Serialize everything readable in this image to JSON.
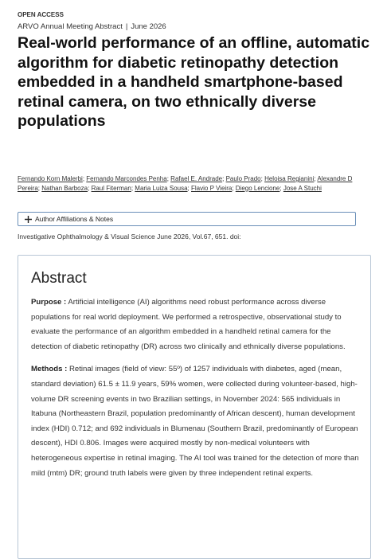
{
  "header": {
    "badge": "OPEN ACCESS",
    "article_type": "ARVO Annual Meeting Abstract",
    "separator": "|",
    "date": "June 2026"
  },
  "title": "Real-world performance of an offline, automatic algorithm for diabetic retinopathy detection embedded in a handheld smartphone-based retinal camera, on two ethnically diverse populations",
  "authors": [
    "Fernando Korn Malerbi",
    "Fernando Marcondes Penha",
    "Rafael E. Andrade",
    "Paulo Prado",
    "Heloisa Regianini",
    "Alexandre D Pereira",
    "Nathan Barboza",
    "Raul Fiterman",
    "Maria Luiza Sousa",
    "Flavio P Vieira",
    "Diego Lencione",
    "Jose A Stuchi"
  ],
  "author_separator": ";",
  "affiliations_toggle": "Author Affiliations & Notes",
  "citation": "Investigative Ophthalmology & Visual Science June 2026, Vol.67, 651. doi:",
  "abstract": {
    "heading": "Abstract",
    "sections": [
      {
        "label": "Purpose :",
        "text": "Artificial intelligence (AI) algorithms need robust performance across diverse populations for real world deployment. We performed a retrospective, observational study to evaluate the performance of an algorithm embedded in a handheld retinal camera for the detection of diabetic retinopathy (DR) across two clinically and ethnically diverse populations."
      },
      {
        "label": "Methods :",
        "text": "Retinal images (field of view: 55º) of 1257 individuals with diabetes, aged (mean, standard deviation) 61.5 ± 11.9 years, 59% women, were collected during volunteer-based, high-volume DR screening events in two Brazilian settings, in November 2024: 565 individuals in Itabuna (Northeastern Brazil, population predominantly of African descent), human development index (HDI) 0.712; and 692 individuals in Blumenau (Southern Brazil, predominantly of European descent), HDI 0.806. Images were acquired mostly by non-medical volunteers with heterogeneous expertise in retinal imaging. The AI tool was trained for the detection of more than mild (mtm) DR; ground truth labels were given by three independent retinal experts."
      }
    ]
  }
}
